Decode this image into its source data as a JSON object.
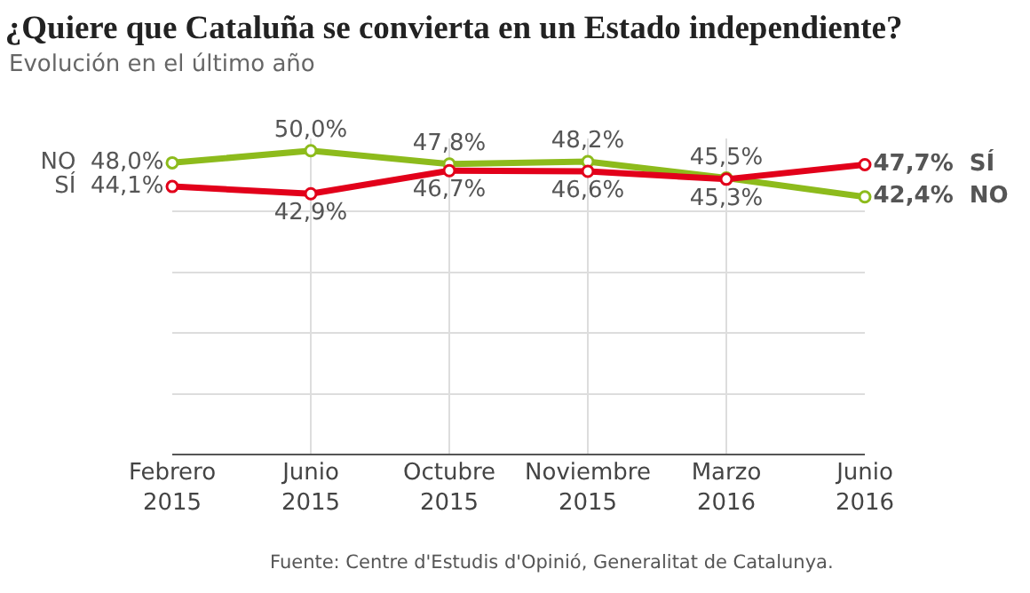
{
  "chart_data": {
    "type": "line",
    "title": "¿Quiere que Cataluña se convierta en un Estado independiente?",
    "subtitle": "Evolución en el último año",
    "categories": [
      "Febrero\n2015",
      "Junio\n2015",
      "Octubre\n2015",
      "Noviembre\n2015",
      "Marzo\n2016",
      "Junio\n2016"
    ],
    "series": [
      {
        "name": "NO",
        "color": "#8dbb1c",
        "values": [
          48.0,
          50.0,
          47.8,
          48.2,
          45.5,
          42.4
        ],
        "value_labels": [
          "48,0%",
          "50,0%",
          "47,8%",
          "48,2%",
          "45,5%",
          "42,4%"
        ]
      },
      {
        "name": "SÍ",
        "color": "#e2001a",
        "values": [
          44.1,
          42.9,
          46.7,
          46.6,
          45.3,
          47.7
        ],
        "value_labels": [
          "44,1%",
          "42,9%",
          "46,7%",
          "46,6%",
          "45,3%",
          "47,7%"
        ]
      }
    ],
    "ylim": [
      0,
      52
    ],
    "yticks": [
      {
        "value": 0,
        "label": null
      },
      {
        "value": 10,
        "label": null
      },
      {
        "value": 20,
        "label": null
      },
      {
        "value": 30,
        "label": null
      },
      {
        "value": 40,
        "label": null
      }
    ],
    "grid": true,
    "legend": false,
    "marker": "circle",
    "line_style": "solid",
    "annotations": [
      "Fuente: Centre d'Estudis d'Opinió, Generalitat de Catalunya."
    ]
  }
}
